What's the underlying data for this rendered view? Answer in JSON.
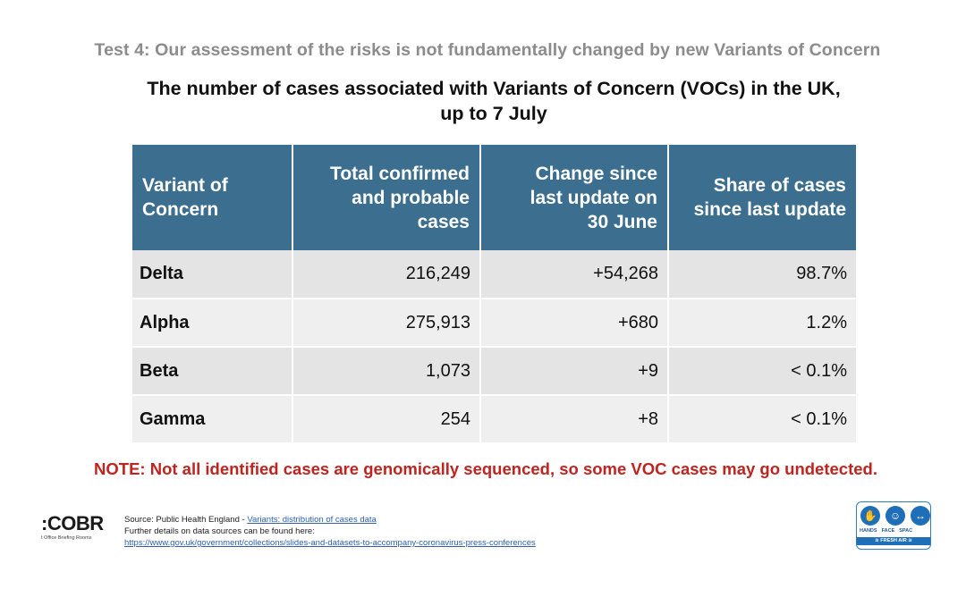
{
  "header": {
    "test_heading": "Test 4: Our assessment of the risks is not fundamentally changed by new Variants of Concern"
  },
  "slide": {
    "title_line1": "The number of cases associated with Variants of Concern (VOCs) in the UK,",
    "title_line2": "up to 7 July"
  },
  "table": {
    "headers": [
      [
        "Variant of",
        "Concern"
      ],
      [
        "Total confirmed",
        "and probable",
        "cases"
      ],
      [
        "Change since",
        "last update on",
        "30 June"
      ],
      [
        "Share of cases",
        "since last update"
      ]
    ],
    "rows": [
      {
        "variant": "Delta",
        "total": "216,249",
        "change": "+54,268",
        "share": "98.7%"
      },
      {
        "variant": "Alpha",
        "total": "275,913",
        "change": "+680",
        "share": "1.2%"
      },
      {
        "variant": "Beta",
        "total": "1,073",
        "change": "+9",
        "share": "< 0.1%"
      },
      {
        "variant": "Gamma",
        "total": "254",
        "change": "+8",
        "share": "< 0.1%"
      }
    ]
  },
  "note": "NOTE: Not all identified cases are genomically sequenced, so some VOC cases may go undetected.",
  "footer": {
    "logo_text": ":COBR",
    "logo_subtext": "t Office Briefing Rooms",
    "source_prefix": "Source: Public Health England - ",
    "source_link": "Variants: distribution of cases data",
    "details_text": "Further details on data sources can be found here:",
    "details_url": "https://www.gov.uk/government/collections/slides-and-datasets-to-accompany-coronavirus-press-conferences"
  },
  "badge": {
    "labels": [
      "HANDS",
      "FACE",
      "SPAC"
    ],
    "fresh_air": "≋ FRESH AIR ≋",
    "icons": [
      "hands-icon",
      "face-icon",
      "space-icon"
    ]
  },
  "colors": {
    "header_bg": "#3c6e8f",
    "note_red": "#c0241f",
    "heading_grey": "#8c8c8c",
    "link_blue": "#2f5fb0",
    "badge_blue": "#1f6fb8"
  }
}
